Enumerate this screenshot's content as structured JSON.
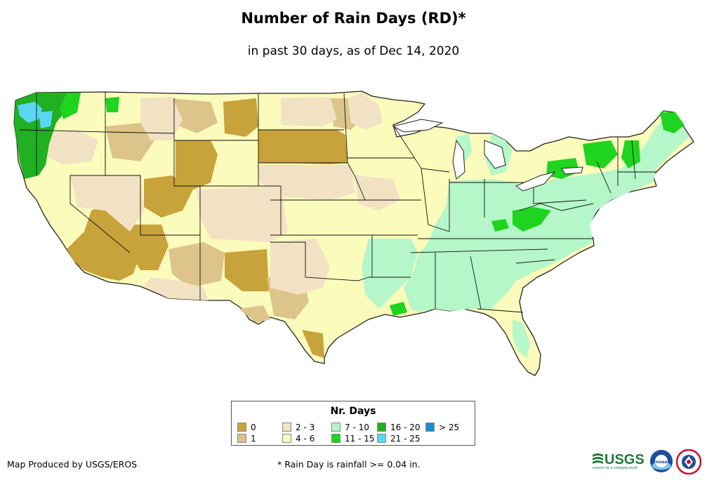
{
  "title": "Number of Rain Days (RD)*",
  "subtitle": "in past 30 days, as of Dec 14, 2020",
  "legend": {
    "title": "Nr. Days",
    "items": [
      {
        "label": "0",
        "color": "#c8a33b"
      },
      {
        "label": "1",
        "color": "#dcc48a"
      },
      {
        "label": "2 - 3",
        "color": "#f2e2c4"
      },
      {
        "label": "4 - 6",
        "color": "#fbfbbb"
      },
      {
        "label": "7 - 10",
        "color": "#b5f7c8"
      },
      {
        "label": "11 - 15",
        "color": "#1fd41f"
      },
      {
        "label": "16 - 20",
        "color": "#21b021"
      },
      {
        "label": "21 - 25",
        "color": "#5bd6f2"
      },
      {
        "label": "> 25",
        "color": "#1a8fc9"
      }
    ]
  },
  "credit": "Map Produced by USGS/EROS",
  "footnote": "* Rain Day is rainfall >= 0.04 in.",
  "logos": {
    "usgs": "USGS",
    "usgs_tagline": "science for a changing world",
    "noaa": "noaa"
  },
  "colors": {
    "border": "#000000",
    "outline": "#222222"
  }
}
